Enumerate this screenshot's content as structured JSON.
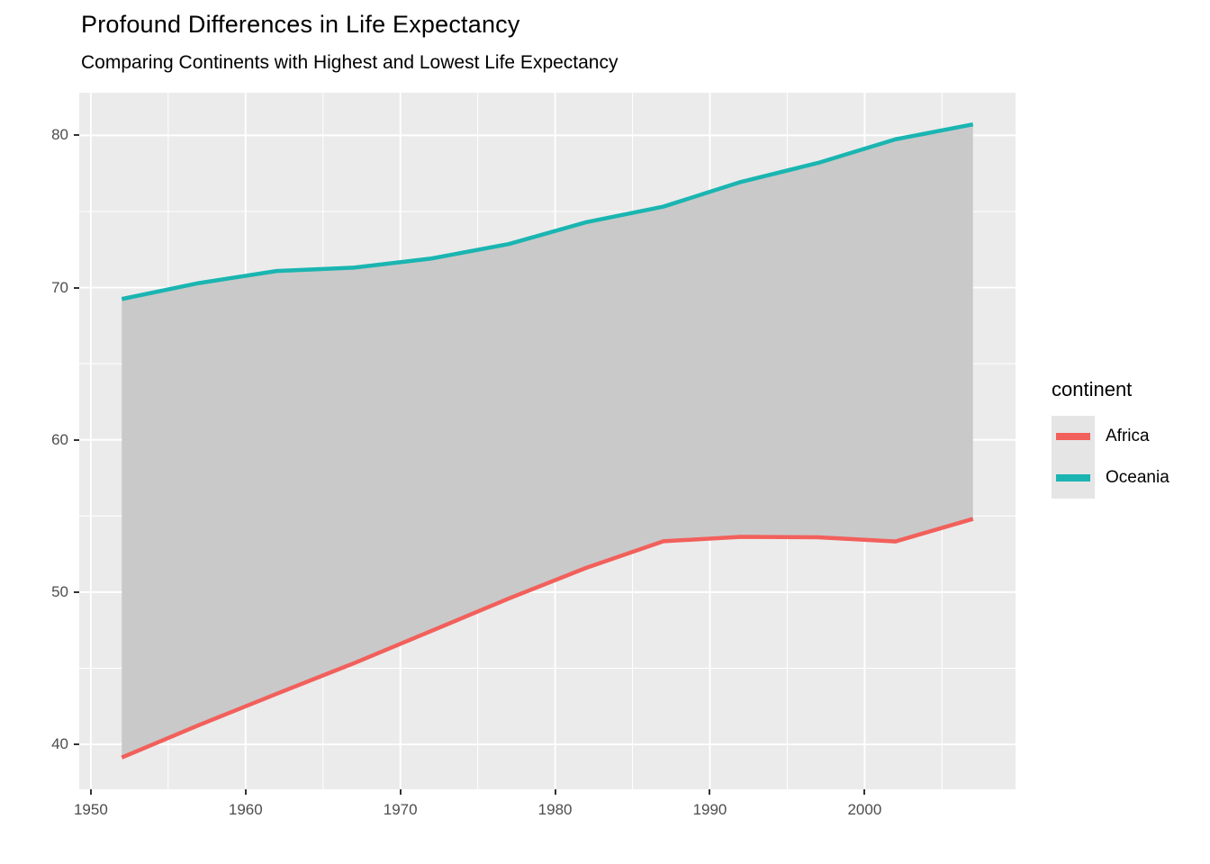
{
  "chart_data": {
    "type": "line",
    "title": "Profound Differences in Life Expectancy",
    "subtitle": "Comparing Continents with Highest and Lowest Life Expectancy",
    "x": [
      1952,
      1957,
      1962,
      1967,
      1972,
      1977,
      1982,
      1987,
      1992,
      1997,
      2002,
      2007
    ],
    "series": [
      {
        "name": "Africa",
        "color": "#F2605B",
        "values": [
          39.14,
          41.27,
          43.32,
          45.33,
          47.45,
          49.58,
          51.59,
          53.34,
          53.63,
          53.6,
          53.33,
          54.81
        ]
      },
      {
        "name": "Oceania",
        "color": "#1AB5B1",
        "values": [
          69.25,
          70.3,
          71.09,
          71.31,
          71.91,
          72.86,
          74.29,
          75.32,
          76.94,
          78.19,
          79.74,
          80.72
        ]
      }
    ],
    "ribbon": {
      "lower_series": "Africa",
      "upper_series": "Oceania",
      "fill": "#C9C9C9"
    },
    "xlabel": "",
    "ylabel": "",
    "xlim": [
      1949.25,
      2009.75
    ],
    "ylim": [
      37.05,
      82.8
    ],
    "xticks": [
      1950,
      1960,
      1970,
      1980,
      1990,
      2000
    ],
    "yticks": [
      40,
      50,
      60,
      70,
      80
    ],
    "minor_xticks": [
      1955,
      1965,
      1975,
      1985,
      1995,
      2005
    ],
    "minor_yticks": [
      45,
      55,
      65,
      75
    ],
    "grid": "on",
    "legend": {
      "title": "continent",
      "position": "right",
      "entries": [
        {
          "label": "Africa",
          "color": "#F2605B"
        },
        {
          "label": "Oceania",
          "color": "#1AB5B1"
        }
      ]
    },
    "colors": {
      "panel_background": "#EBEBEB",
      "grid": "#FFFFFF",
      "ribbon_fill": "#C9C9C9",
      "axis_text": "#4D4D4D",
      "tick_mark": "#333333",
      "legend_key_background": "#E5E5E5"
    }
  }
}
